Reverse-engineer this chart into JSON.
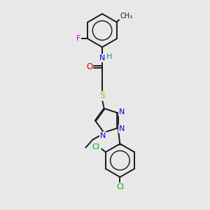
{
  "bg_color": "#e8e8e8",
  "bond_color": "#1a1a1a",
  "bond_width": 1.4,
  "figsize": [
    3.0,
    3.0
  ],
  "dpi": 100,
  "atom_colors": {
    "F": "#cc00cc",
    "N": "#0000dd",
    "H": "#338888",
    "O": "#cc0000",
    "S": "#bbaa00",
    "Cl": "#00aa00",
    "C": "#1a1a1a"
  }
}
